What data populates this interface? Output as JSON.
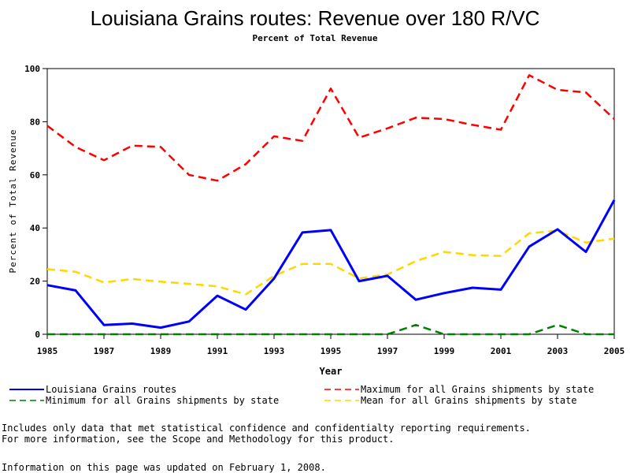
{
  "chart_data": {
    "type": "line",
    "title": "Louisiana Grains routes: Revenue over 180 R/VC",
    "subtitle": "Percent of Total Revenue",
    "xlabel": "Year",
    "ylabel": "Percent of Total Revenue",
    "xlim": [
      1985,
      2005
    ],
    "ylim": [
      0,
      100
    ],
    "x_ticks": [
      1985,
      1987,
      1989,
      1991,
      1993,
      1995,
      1997,
      1999,
      2001,
      2003,
      2005
    ],
    "y_ticks": [
      0,
      20,
      40,
      60,
      80,
      100
    ],
    "x": [
      1985,
      1986,
      1987,
      1988,
      1989,
      1990,
      1991,
      1992,
      1993,
      1994,
      1995,
      1996,
      1997,
      1998,
      1999,
      2000,
      2001,
      2002,
      2003,
      2004,
      2005
    ],
    "series": [
      {
        "name": "Louisiana Grains routes",
        "color": "#0000ff",
        "dash": "solid",
        "values": [
          18.5,
          16.5,
          3.5,
          4,
          2.5,
          4.8,
          14.5,
          9.3,
          21,
          38.3,
          39.2,
          20,
          22,
          13,
          15.5,
          17.5,
          16.8,
          33,
          39.5,
          31,
          50.5
        ]
      },
      {
        "name": "Maximum for all Grains shipments by state",
        "color": "#ff0000",
        "dash": "dashed",
        "values": [
          78.5,
          70.5,
          65.5,
          71,
          70.5,
          60,
          57.8,
          64,
          74.5,
          72.8,
          92.5,
          74,
          77.5,
          81.5,
          81,
          78.8,
          77,
          97.5,
          92,
          91,
          81
        ]
      },
      {
        "name": "Minimum for all Grains shipments by state",
        "color": "#008000",
        "dash": "dashed",
        "values": [
          0,
          0,
          0,
          0,
          0,
          0,
          0,
          0,
          0,
          0,
          0,
          0,
          0,
          3.5,
          0,
          0,
          0,
          0,
          3.5,
          0,
          0
        ]
      },
      {
        "name": "Mean for all Grains shipments by state",
        "color": "#ffd700",
        "dash": "dashed",
        "values": [
          24.5,
          23.5,
          19.5,
          20.8,
          19.8,
          19,
          18,
          15,
          22,
          26.5,
          26.5,
          21,
          22.5,
          27.5,
          31,
          29.8,
          29.5,
          38,
          39,
          34.5,
          36
        ]
      }
    ]
  },
  "legend": [
    {
      "label": "Louisiana Grains routes",
      "color": "#0000ff",
      "dash": "solid"
    },
    {
      "label": "Maximum for all Grains shipments by state",
      "color": "#ff0000",
      "dash": "dashed"
    },
    {
      "label": "Minimum for all Grains shipments by state",
      "color": "#008000",
      "dash": "dashed"
    },
    {
      "label": "Mean for all Grains shipments by state",
      "color": "#ffd700",
      "dash": "dashed"
    }
  ],
  "notes": {
    "line1": "Includes only data that met statistical confidence and confidentialty reporting requirements.",
    "line2": "For more information, see the Scope and Methodology for this product.",
    "updated": "Information on this page was updated on February 1, 2008."
  }
}
